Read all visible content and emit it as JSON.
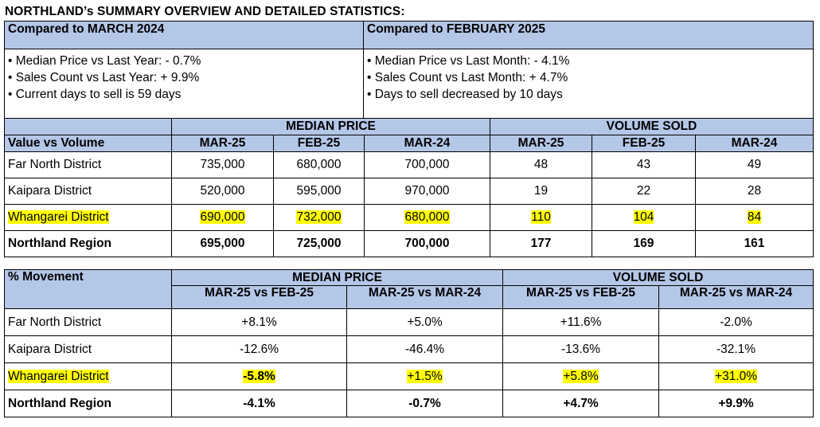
{
  "title": "NORTHLAND’s SUMMARY OVERVIEW AND DETAILED STATISTICS:",
  "summary": {
    "left": {
      "heading": "Compared to MARCH 2024",
      "bullets": [
        "• Median Price vs Last Year: - 0.7%",
        "• Sales Count vs Last Year:  + 9.9%",
        "• Current days to sell is 59 days"
      ]
    },
    "right": {
      "heading": "Compared to FEBRUARY 2025",
      "bullets": [
        "• Median Price vs Last Month: - 4.1%",
        "• Sales Count vs Last Month: + 4.7%",
        "• Days to sell decreased by 10 days"
      ]
    }
  },
  "values_table": {
    "group_median": "MEDIAN PRICE",
    "group_volume": "VOLUME SOLD",
    "label_header": "Value vs Volume",
    "columns": [
      "MAR-25",
      "FEB-25",
      "MAR-24",
      "MAR-25",
      "FEB-25",
      "MAR-24"
    ],
    "rows": [
      {
        "name": "Far North District",
        "values": [
          "735,000",
          "680,000",
          "700,000",
          "48",
          "43",
          "49"
        ]
      },
      {
        "name": "Kaipara District",
        "values": [
          "520,000",
          "595,000",
          "970,000",
          "19",
          "22",
          "28"
        ]
      },
      {
        "name": "Whangarei District",
        "values": [
          "690,000",
          "732,000",
          "680,000",
          "110",
          "104",
          "84"
        ]
      },
      {
        "name": "Northland Region",
        "values": [
          "695,000",
          "725,000",
          "700,000",
          "177",
          "169",
          "161"
        ]
      }
    ]
  },
  "percent_table": {
    "label_header": "% Movement",
    "group_median": "MEDIAN PRICE",
    "group_volume": "VOLUME SOLD",
    "columns": [
      "MAR-25 vs FEB-25",
      "MAR-25 vs MAR-24",
      "MAR-25 vs FEB-25",
      "MAR-25 vs MAR-24"
    ],
    "rows": [
      {
        "name": "Far North District",
        "values": [
          "+8.1%",
          "+5.0%",
          "+11.6%",
          "-2.0%"
        ]
      },
      {
        "name": "Kaipara District",
        "values": [
          "-12.6%",
          "-46.4%",
          "-13.6%",
          "-32.1%"
        ]
      },
      {
        "name": "Whangarei District",
        "values": [
          "-5.8%",
          "+1.5%",
          "+5.8%",
          "+31.0%"
        ]
      },
      {
        "name": "Northland Region",
        "values": [
          "-4.1%",
          "-0.7%",
          "+4.7%",
          "+9.9%"
        ]
      }
    ]
  },
  "colors": {
    "header_fill": "#b4c7e7",
    "highlight": "#ffff00"
  }
}
